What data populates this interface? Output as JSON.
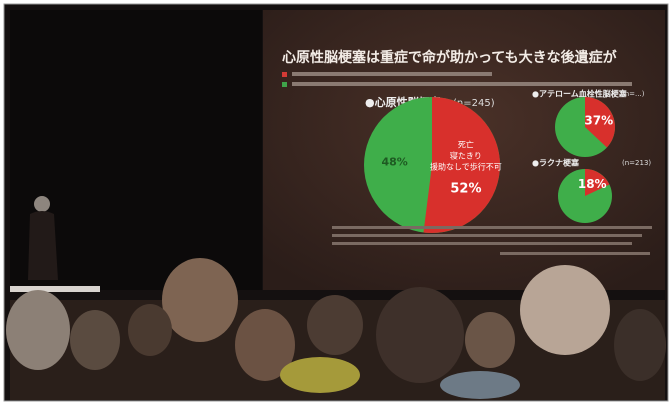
{
  "slide": {
    "title": "心原性脳梗塞は重症で命が助かっても大きな後遺症が",
    "pies": [
      {
        "title": "●心原性脳梗塞",
        "n": "(n=245)",
        "value": 52,
        "value_label": "52%",
        "rest_label": "48%",
        "slice_text": [
          "死亡",
          "寝たきり",
          "援助なしで歩行不可"
        ]
      },
      {
        "title": "●アテローム血栓性脳梗塞",
        "n": "(n=...)",
        "value": 37,
        "value_label": "37%"
      },
      {
        "title": "●ラクナ梗塞",
        "n": "(n=213)",
        "value": 18,
        "value_label": "18%"
      }
    ]
  }
}
